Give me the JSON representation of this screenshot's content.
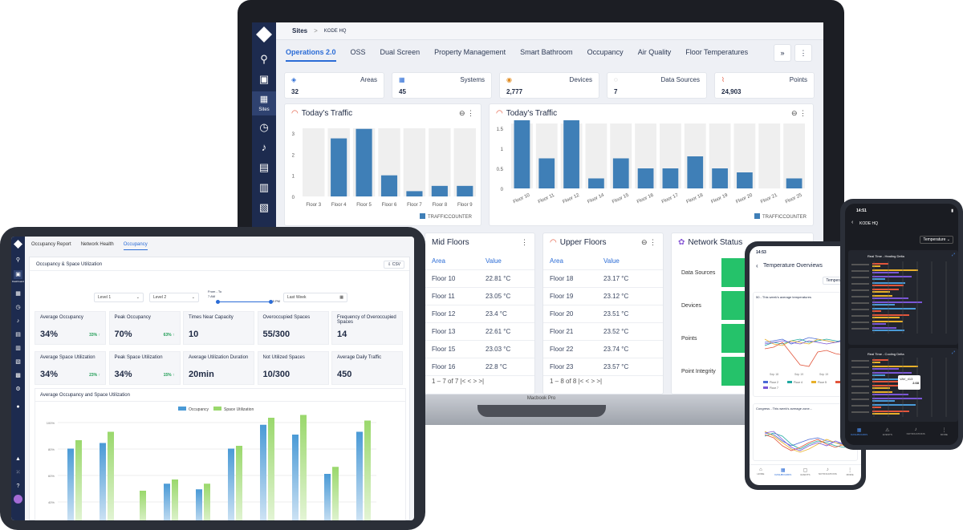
{
  "laptop": {
    "breadcrumb": {
      "root": "Sites",
      "sep": ">",
      "current": "KODE HQ"
    },
    "sidebar_label": "Sites",
    "tabs": [
      "Operations 2.0",
      "OSS",
      "Dual Screen",
      "Property Management",
      "Smart Bathroom",
      "Occupancy",
      "Air Quality",
      "Floor Temperatures"
    ],
    "more_label": "»",
    "kebab_label": "⋮",
    "stats": [
      {
        "label": "Areas",
        "value": "32"
      },
      {
        "label": "Systems",
        "value": "45"
      },
      {
        "label": "Devices",
        "value": "2,777"
      },
      {
        "label": "Data Sources",
        "value": "7"
      },
      {
        "label": "Points",
        "value": "24,903"
      }
    ],
    "chart1": {
      "title": "Today's Traffic",
      "legend": "TRAFFICCOUNTER"
    },
    "chart2": {
      "title": "Today's Traffic",
      "legend": "TRAFFICCOUNTER"
    },
    "mid": {
      "title": "Mid Floors",
      "col_area": "Area",
      "col_value": "Value",
      "rows": [
        [
          "Floor 10",
          "22.81 °C"
        ],
        [
          "Floor 11",
          "23.05 °C"
        ],
        [
          "Floor 12",
          "23.4 °C"
        ],
        [
          "Floor 13",
          "22.61 °C"
        ],
        [
          "Floor 15",
          "23.03 °C"
        ],
        [
          "Floor 16",
          "22.8 °C"
        ]
      ],
      "pager": "1 – 7 of 7"
    },
    "upper": {
      "title": "Upper Floors",
      "col_area": "Area",
      "col_value": "Value",
      "rows": [
        [
          "Floor 18",
          "23.17 °C"
        ],
        [
          "Floor 19",
          "23.12 °C"
        ],
        [
          "Floor 20",
          "23.51 °C"
        ],
        [
          "Floor 21",
          "23.52 °C"
        ],
        [
          "Floor 22",
          "23.74 °C"
        ],
        [
          "Floor 23",
          "23.57 °C"
        ]
      ],
      "pager": "1 – 8 of 8"
    },
    "network": {
      "title": "Network Status",
      "rows": [
        "Data Sources",
        "Devices",
        "Points",
        "Point Integrity"
      ]
    },
    "base_label": "Macbook Pro"
  },
  "chart_data": [
    {
      "type": "bar",
      "title": "Today's Traffic",
      "categories": [
        "Floor 3",
        "Floor 4",
        "Floor 5",
        "Floor 6",
        "Floor 7",
        "Floor 8",
        "Floor 9"
      ],
      "series": [
        {
          "name": "TRAFFICCOUNTER",
          "values": [
            0,
            2.75,
            3.2,
            1.0,
            0.25,
            0.5,
            0.5
          ]
        }
      ],
      "ylim": [
        0,
        3
      ],
      "yticks": [
        "0",
        "1",
        "2",
        "3"
      ],
      "color": "#3f7fb7"
    },
    {
      "type": "bar",
      "title": "Today's Traffic",
      "categories": [
        "Floor 10",
        "Floor 11",
        "Floor 12",
        "Floor 14",
        "Floor 15",
        "Floor 16",
        "Floor 17",
        "Floor 18",
        "Floor 19",
        "Floor 20",
        "Floor 21",
        "Floor 25"
      ],
      "series": [
        {
          "name": "TRAFFICCOUNTER",
          "values": [
            1.7,
            0.75,
            1.7,
            0.25,
            0.75,
            0.5,
            0.5,
            0.8,
            0.5,
            0.4,
            0,
            0.25
          ]
        }
      ],
      "ylim": [
        0,
        1.5
      ],
      "yticks": [
        "0",
        "0.5",
        "1",
        "1.5"
      ],
      "color": "#3f7fb7"
    }
  ],
  "tablet": {
    "tabs": [
      "Occupancy Report",
      "Network Health",
      "Occupancy"
    ],
    "panel_title": "Occupancy & Space Utilization",
    "csv_label": "CSV",
    "filters": {
      "level1": "Level 1",
      "level2": "Level 2",
      "time_title": "From - To",
      "time_from": "7 AM",
      "time_to": "5 PM",
      "period": "Last Week"
    },
    "cells": [
      {
        "label": "Average Occupancy",
        "value": "34%",
        "delta": "33% ↑"
      },
      {
        "label": "Peak Occupancy",
        "value": "70%",
        "delta": "63% ↑"
      },
      {
        "label": "Times Near Capacity",
        "value": "10",
        "delta": ""
      },
      {
        "label": "Overoccupied Spaces",
        "value": "55/300",
        "delta": ""
      },
      {
        "label": "Frequency of Overoccupied Spaces",
        "value": "14",
        "delta": ""
      },
      {
        "label": "Average Space Utilization",
        "value": "34%",
        "delta": "23% ↑"
      },
      {
        "label": "Peak Space Utilization",
        "value": "34%",
        "delta": "15% ↑"
      },
      {
        "label": "Average Utilization Duration",
        "value": "20min",
        "delta": ""
      },
      {
        "label": "Not Utilized Spaces",
        "value": "10/300",
        "delta": ""
      },
      {
        "label": "Average Daily Traffic",
        "value": "450",
        "delta": ""
      }
    ],
    "chart_title": "Average Occupancy and Space Utilization",
    "legend": [
      "Occupancy",
      "Space Utilization"
    ],
    "yticks": [
      "100%",
      "80%",
      "60%",
      "40%"
    ],
    "sidebar_label": "Dashboard"
  },
  "phone1": {
    "time": "14:53",
    "title": "Temperature Overviews",
    "dropdown": "Temperature",
    "card1": "50 - This week's average temperatures",
    "card2": "Congress - This week's average zone...",
    "xticks": [
      "Sep 18",
      "Sep 19",
      "Sep 19",
      "Sep 20"
    ],
    "legend": [
      "Floor 2",
      "Floor 4",
      "Floor 5",
      "Floor 6",
      "Floor 7"
    ],
    "nav": [
      "HOME",
      "DASHBOARDS",
      "EVENTS",
      "NOTIFICATIONS",
      "MORE"
    ]
  },
  "phone2": {
    "time": "14:51",
    "site": "KODE HQ",
    "dropdown": "Temperature",
    "card1": "Real Time - Heating Delta",
    "card2": "Real Time - Cooling Delta",
    "tooltip_title": "VAV_413",
    "tooltip_val": "2.68",
    "nav": [
      "DASHBOARDS",
      "EVENTS",
      "NOTIFICATIONS",
      "MORE"
    ]
  }
}
